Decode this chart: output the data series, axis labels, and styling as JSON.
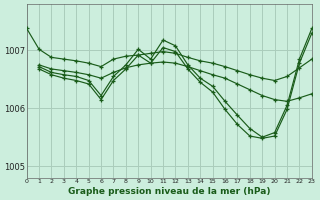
{
  "title": "Graphe pression niveau de la mer (hPa)",
  "bg_color": "#cceedd",
  "grid_color": "#aaccbb",
  "line_color": "#1a5c1a",
  "xlim": [
    0,
    23
  ],
  "ylim": [
    1004.8,
    1007.8
  ],
  "yticks": [
    1005,
    1006,
    1007
  ],
  "xticks": [
    0,
    1,
    2,
    3,
    4,
    5,
    6,
    7,
    8,
    9,
    10,
    11,
    12,
    13,
    14,
    15,
    16,
    17,
    18,
    19,
    20,
    21,
    22,
    23
  ],
  "lines": [
    {
      "x": [
        0,
        1,
        2,
        3,
        4,
        5,
        6,
        7,
        8,
        9,
        10,
        11,
        12,
        13,
        14,
        15,
        16,
        17,
        18,
        19,
        20,
        21,
        22,
        23
      ],
      "y": [
        1007.38,
        1007.02,
        1006.88,
        1006.85,
        1006.82,
        1006.78,
        1006.72,
        1006.85,
        1006.9,
        1006.92,
        1006.95,
        1006.98,
        1006.95,
        1006.88,
        1006.82,
        1006.78,
        1006.72,
        1006.65,
        1006.58,
        1006.52,
        1006.48,
        1006.55,
        1006.7,
        1006.85
      ]
    },
    {
      "x": [
        1,
        2,
        3,
        4,
        5,
        6,
        7,
        8,
        9,
        10,
        11,
        12,
        13,
        14,
        15,
        16,
        17,
        18,
        19,
        20,
        21,
        22,
        23
      ],
      "y": [
        1006.75,
        1006.68,
        1006.65,
        1006.62,
        1006.58,
        1006.52,
        1006.62,
        1006.7,
        1006.75,
        1006.78,
        1006.8,
        1006.78,
        1006.72,
        1006.65,
        1006.58,
        1006.52,
        1006.42,
        1006.32,
        1006.22,
        1006.15,
        1006.12,
        1006.18,
        1006.25
      ]
    },
    {
      "x": [
        1,
        2,
        3,
        4,
        5,
        6,
        7,
        8,
        9,
        10,
        11,
        12,
        13,
        14,
        15,
        16,
        17,
        18,
        19,
        20,
        21,
        22,
        23
      ],
      "y": [
        1006.72,
        1006.62,
        1006.58,
        1006.55,
        1006.48,
        1006.22,
        1006.55,
        1006.75,
        1007.02,
        1006.85,
        1007.18,
        1007.08,
        1006.75,
        1006.52,
        1006.38,
        1006.12,
        1005.88,
        1005.65,
        1005.5,
        1005.58,
        1006.05,
        1006.85,
        1007.38
      ]
    },
    {
      "x": [
        1,
        2,
        3,
        4,
        5,
        6,
        7,
        8,
        9,
        10,
        11,
        12,
        13,
        14,
        15,
        16,
        17,
        18,
        19,
        20,
        21,
        22,
        23
      ],
      "y": [
        1006.68,
        1006.58,
        1006.52,
        1006.48,
        1006.42,
        1006.15,
        1006.48,
        1006.68,
        1006.92,
        1006.78,
        1007.05,
        1006.98,
        1006.68,
        1006.45,
        1006.28,
        1005.98,
        1005.72,
        1005.52,
        1005.48,
        1005.52,
        1005.98,
        1006.78,
        1007.3
      ]
    }
  ]
}
